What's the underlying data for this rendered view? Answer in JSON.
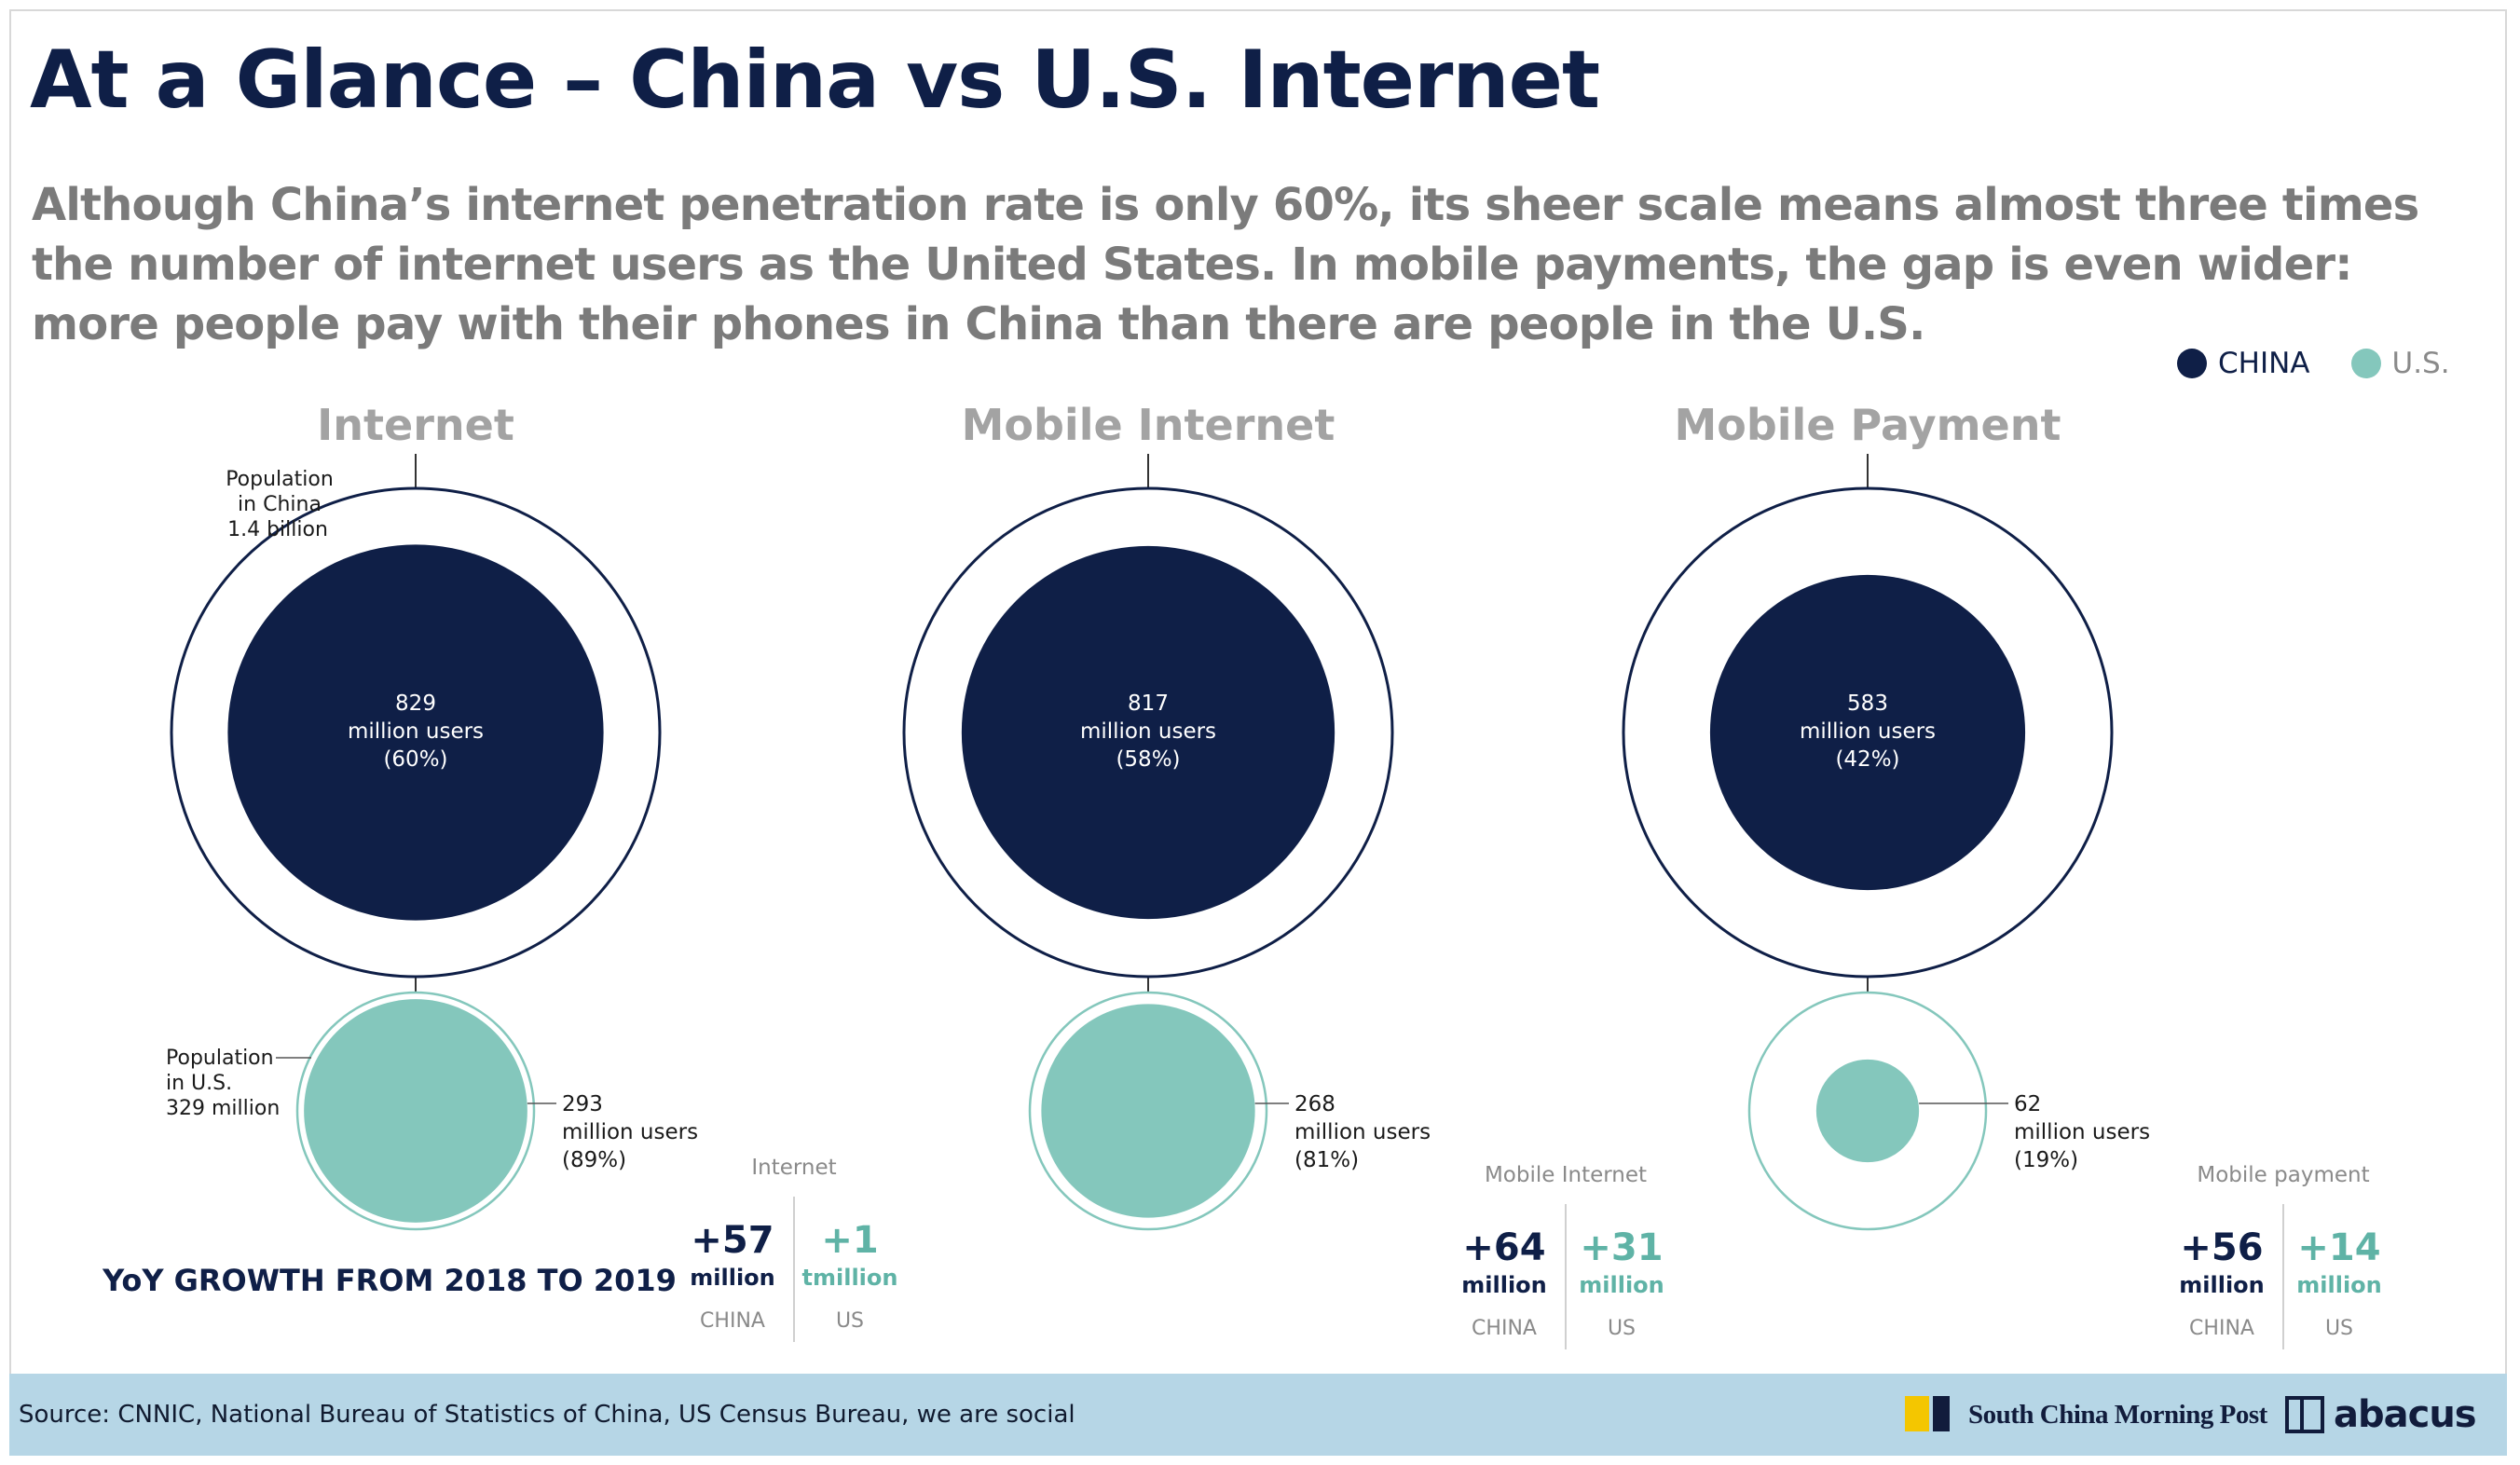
{
  "header": {
    "title": "At a Glance – China vs U.S. Internet",
    "subtitle": "Although China’s internet penetration rate is only 60%, its sheer scale means almost three times the number of internet users as the United States. In mobile payments, the gap is even wider: more people pay with their phones in China than there are people in the U.S."
  },
  "legend": {
    "china": "CHINA",
    "us": "U.S."
  },
  "colors": {
    "china": "#0f1f47",
    "us": "#84c7bc",
    "muted": "#8a8a8a",
    "outline_china": "#0f1f47",
    "outline_us": "#84c7bc"
  },
  "annotations": {
    "china_population_lines": [
      "Population",
      "in China"
    ],
    "china_population_value": "1.4 billion",
    "us_population_lines": [
      "Population",
      "in U.S."
    ],
    "us_population_value": "329 million",
    "yoy_label": "YoY GROWTH FROM 2018 TO 2019"
  },
  "chart_data": {
    "type": "bubble-comparison",
    "series_names": [
      "CHINA",
      "U.S."
    ],
    "population_china_million": 1400,
    "population_us_million": 329,
    "panels": [
      {
        "title": "Internet",
        "china_users_million": 829,
        "china_pct": 60,
        "china_label_lines": [
          "829",
          "million users",
          "(60%)"
        ],
        "us_users_million": 293,
        "us_pct": 89,
        "us_label_lines": [
          "293",
          "million users",
          "(89%)"
        ],
        "growth": {
          "title": "Internet",
          "china_value": "+57",
          "china_unit": "million",
          "china_label": "CHINA",
          "us_value": "+1",
          "us_unit": "tmillion",
          "us_label": "US"
        }
      },
      {
        "title": "Mobile Internet",
        "china_users_million": 817,
        "china_pct": 58,
        "china_label_lines": [
          "817",
          "million users",
          "(58%)"
        ],
        "us_users_million": 268,
        "us_pct": 81,
        "us_label_lines": [
          "268",
          "million users",
          "(81%)"
        ],
        "growth": {
          "title": "Mobile Internet",
          "china_value": "+64",
          "china_unit": "million",
          "china_label": "CHINA",
          "us_value": "+31",
          "us_unit": "million",
          "us_label": "US"
        }
      },
      {
        "title": "Mobile Payment",
        "china_users_million": 583,
        "china_pct": 42,
        "china_label_lines": [
          "583",
          "million users",
          "(42%)"
        ],
        "us_users_million": 62,
        "us_pct": 19,
        "us_label_lines": [
          "62",
          "million users",
          "(19%)"
        ],
        "growth": {
          "title": "Mobile payment",
          "china_value": "+56",
          "china_unit": "million",
          "china_label": "CHINA",
          "us_value": "+14",
          "us_unit": "million",
          "us_label": "US"
        }
      }
    ]
  },
  "footer": {
    "source": "Source: CNNIC, National Bureau of Statistics of China, US Census Bureau, we are social",
    "brand_scmp": "South China Morning Post",
    "brand_abacus": "abacus"
  }
}
